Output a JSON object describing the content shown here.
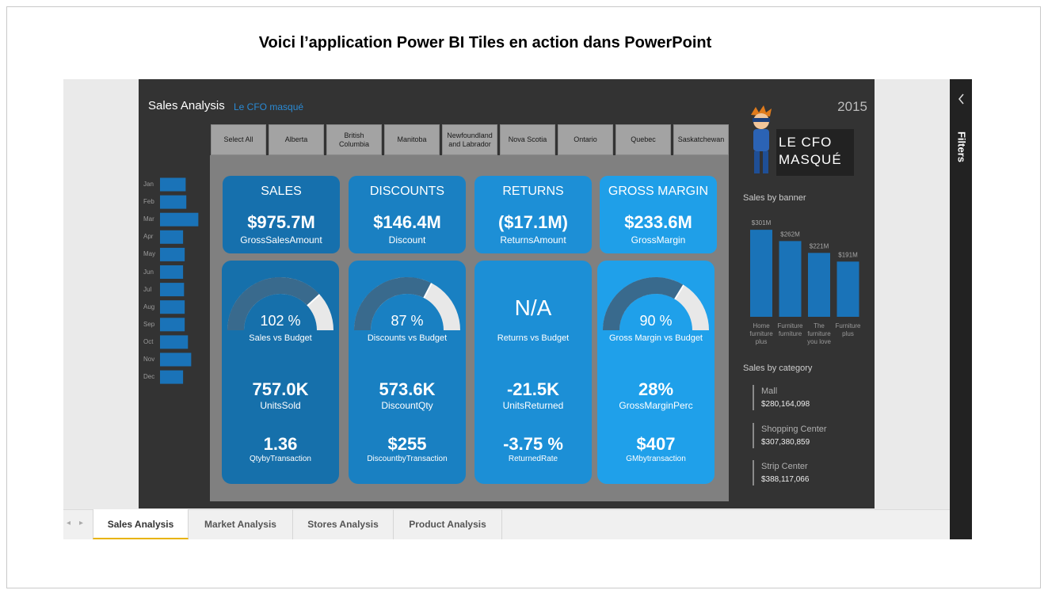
{
  "slide_title": "Voici l’application Power BI Tiles en action dans PowerPoint",
  "report": {
    "title": "Sales Analysis",
    "subtitle": "Le CFO masqué",
    "year": "2015"
  },
  "slicer": [
    "Select All",
    "Alberta",
    "British Columbia",
    "Manitoba",
    "Newfoundland and Labrador",
    "Nova Scotia",
    "Ontario",
    "Quebec",
    "Saskatchewan"
  ],
  "kpi_cards": [
    {
      "title": "SALES",
      "value": "$975.7M",
      "label": "GrossSalesAmount",
      "color": "#1670ad"
    },
    {
      "title": "DISCOUNTS",
      "value": "$146.4M",
      "label": "Discount",
      "color": "#1a80c2"
    },
    {
      "title": "RETURNS",
      "value": "($17.1M)",
      "label": "ReturnsAmount",
      "color": "#1d8fd6"
    },
    {
      "title": "GROSS MARGIN",
      "value": "$233.6M",
      "label": "GrossMargin",
      "color": "#1f9fe8"
    }
  ],
  "detail_cards": [
    {
      "gauge": {
        "value": 102,
        "label": "102 %"
      },
      "gauge_title": "Sales vs Budget",
      "metric1": {
        "value": "757.0K",
        "label": "UnitsSold"
      },
      "metric2": {
        "value": "1.36",
        "label": "QtybyTransaction"
      },
      "color": "#1670ab"
    },
    {
      "gauge": {
        "value": 87,
        "label": "87 %"
      },
      "gauge_title": "Discounts vs Budget",
      "metric1": {
        "value": "573.6K",
        "label": "DiscountQty"
      },
      "metric2": {
        "value": "$255",
        "label": "DiscountbyTransaction"
      },
      "color": "#1980c2"
    },
    {
      "status": "N/A",
      "gauge_title": "Returns vs Budget",
      "metric1": {
        "value": "-21.5K",
        "label": "UnitsReturned"
      },
      "metric2": {
        "value": "-3.75 %",
        "label": "ReturnedRate"
      },
      "color": "#1c8fd6"
    },
    {
      "gauge": {
        "value": 90,
        "label": "90 %"
      },
      "gauge_title": "Gross Margin vs Budget",
      "metric1": {
        "value": "28%",
        "label": "GrossMarginPerc"
      },
      "metric2": {
        "value": "$407",
        "label": "GMbytransaction"
      },
      "color": "#1fa0ea"
    }
  ],
  "chart_data": [
    {
      "type": "bar",
      "orientation": "horizontal",
      "categories": [
        "Jan",
        "Feb",
        "Mar",
        "Apr",
        "May",
        "Jun",
        "Jul",
        "Aug",
        "Sep",
        "Oct",
        "Nov",
        "Dec"
      ],
      "values": [
        79,
        81,
        118,
        71,
        76,
        71,
        74,
        76,
        76,
        86,
        96,
        71
      ],
      "color": "#1a73b8"
    },
    {
      "type": "bar",
      "title": "Sales by banner",
      "categories": [
        "Home furniture plus",
        "Furniture furniture",
        "The furniture you love",
        "Furniture plus"
      ],
      "values": [
        301,
        262,
        221,
        191
      ],
      "value_labels": [
        "$301M",
        "$262M",
        "$221M",
        "$191M"
      ],
      "color": "#1a73b8"
    }
  ],
  "logo": [
    "LE CFO",
    "MASQUÉ"
  ],
  "sales_by_category": {
    "title": "Sales by category",
    "items": [
      {
        "name": "Mall",
        "value": "$280,164,098"
      },
      {
        "name": "Shopping Center",
        "value": "$307,380,859"
      },
      {
        "name": "Strip Center",
        "value": "$388,117,066"
      }
    ]
  },
  "tabs": [
    "Sales Analysis",
    "Market Analysis",
    "Stores Analysis",
    "Product Analysis"
  ],
  "filters_label": "Filters"
}
